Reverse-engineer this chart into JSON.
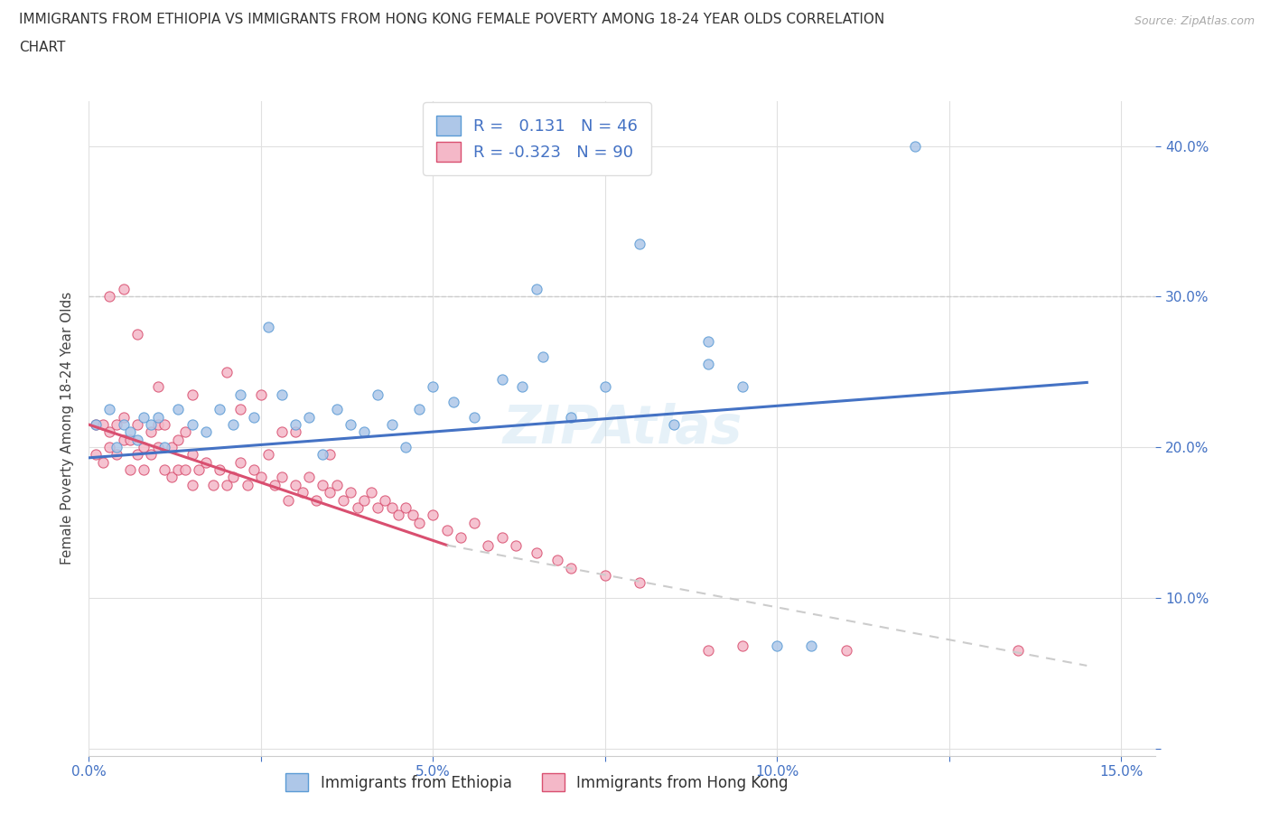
{
  "title_line1": "IMMIGRANTS FROM ETHIOPIA VS IMMIGRANTS FROM HONG KONG FEMALE POVERTY AMONG 18-24 YEAR OLDS CORRELATION",
  "title_line2": "CHART",
  "source": "Source: ZipAtlas.com",
  "ylabel": "Female Poverty Among 18-24 Year Olds",
  "xlim": [
    0.0,
    0.155
  ],
  "ylim": [
    -0.005,
    0.43
  ],
  "ethiopia_color": "#aec7e8",
  "ethiopia_edge": "#5b9bd5",
  "hk_color": "#f4b8c8",
  "hk_edge": "#d94f70",
  "ethiopia_R": 0.131,
  "ethiopia_N": 46,
  "hk_R": -0.323,
  "hk_N": 90,
  "ethiopia_line_color": "#4472c4",
  "hk_line_solid_color": "#d94f70",
  "hk_line_dash_color": "#cccccc",
  "legend_R_color": "#4472c4",
  "watermark": "ZIPAtlas",
  "ethiopia_x": [
    0.001,
    0.003,
    0.004,
    0.005,
    0.006,
    0.007,
    0.008,
    0.009,
    0.01,
    0.011,
    0.013,
    0.015,
    0.017,
    0.019,
    0.021,
    0.022,
    0.024,
    0.026,
    0.028,
    0.03,
    0.032,
    0.034,
    0.036,
    0.038,
    0.04,
    0.042,
    0.044,
    0.046,
    0.048,
    0.05,
    0.053,
    0.056,
    0.06,
    0.063,
    0.066,
    0.07,
    0.075,
    0.08,
    0.085,
    0.09,
    0.095,
    0.1,
    0.105,
    0.065,
    0.12,
    0.09
  ],
  "ethiopia_y": [
    0.215,
    0.225,
    0.2,
    0.215,
    0.21,
    0.205,
    0.22,
    0.215,
    0.22,
    0.2,
    0.225,
    0.215,
    0.21,
    0.225,
    0.215,
    0.235,
    0.22,
    0.28,
    0.235,
    0.215,
    0.22,
    0.195,
    0.225,
    0.215,
    0.21,
    0.235,
    0.215,
    0.2,
    0.225,
    0.24,
    0.23,
    0.22,
    0.245,
    0.24,
    0.26,
    0.22,
    0.24,
    0.335,
    0.215,
    0.255,
    0.24,
    0.068,
    0.068,
    0.305,
    0.4,
    0.27
  ],
  "hk_x": [
    0.001,
    0.001,
    0.002,
    0.002,
    0.003,
    0.003,
    0.004,
    0.004,
    0.005,
    0.005,
    0.006,
    0.006,
    0.007,
    0.007,
    0.008,
    0.008,
    0.009,
    0.009,
    0.01,
    0.01,
    0.011,
    0.011,
    0.012,
    0.012,
    0.013,
    0.013,
    0.014,
    0.014,
    0.015,
    0.015,
    0.016,
    0.017,
    0.018,
    0.019,
    0.02,
    0.021,
    0.022,
    0.023,
    0.024,
    0.025,
    0.026,
    0.027,
    0.028,
    0.029,
    0.03,
    0.031,
    0.032,
    0.033,
    0.034,
    0.035,
    0.036,
    0.037,
    0.038,
    0.039,
    0.04,
    0.041,
    0.042,
    0.043,
    0.044,
    0.045,
    0.046,
    0.047,
    0.048,
    0.05,
    0.052,
    0.054,
    0.056,
    0.058,
    0.06,
    0.062,
    0.065,
    0.068,
    0.07,
    0.075,
    0.08,
    0.003,
    0.005,
    0.007,
    0.095,
    0.11,
    0.02,
    0.025,
    0.03,
    0.035,
    0.01,
    0.015,
    0.022,
    0.028,
    0.135,
    0.09
  ],
  "hk_y": [
    0.215,
    0.195,
    0.215,
    0.19,
    0.21,
    0.2,
    0.215,
    0.195,
    0.205,
    0.22,
    0.205,
    0.185,
    0.215,
    0.195,
    0.2,
    0.185,
    0.21,
    0.195,
    0.215,
    0.2,
    0.215,
    0.185,
    0.2,
    0.18,
    0.205,
    0.185,
    0.21,
    0.185,
    0.195,
    0.175,
    0.185,
    0.19,
    0.175,
    0.185,
    0.175,
    0.18,
    0.19,
    0.175,
    0.185,
    0.18,
    0.195,
    0.175,
    0.18,
    0.165,
    0.175,
    0.17,
    0.18,
    0.165,
    0.175,
    0.17,
    0.175,
    0.165,
    0.17,
    0.16,
    0.165,
    0.17,
    0.16,
    0.165,
    0.16,
    0.155,
    0.16,
    0.155,
    0.15,
    0.155,
    0.145,
    0.14,
    0.15,
    0.135,
    0.14,
    0.135,
    0.13,
    0.125,
    0.12,
    0.115,
    0.11,
    0.3,
    0.305,
    0.275,
    0.068,
    0.065,
    0.25,
    0.235,
    0.21,
    0.195,
    0.24,
    0.235,
    0.225,
    0.21,
    0.065,
    0.065
  ]
}
